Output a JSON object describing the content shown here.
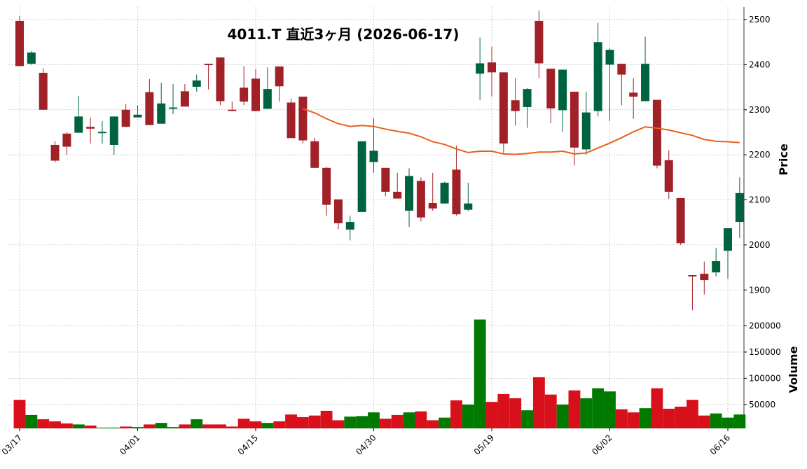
{
  "chart_data": {
    "type": "candlestick",
    "title": "4011.T  直近3ヶ月  (2026-06-17)",
    "ylabel": "Price",
    "volume_label": "Volume",
    "categories": [
      "03/17",
      null,
      null,
      null,
      null,
      null,
      null,
      null,
      null,
      null,
      "04/01",
      null,
      null,
      null,
      null,
      null,
      null,
      null,
      null,
      null,
      "04/15",
      null,
      null,
      null,
      null,
      null,
      null,
      null,
      null,
      null,
      "04/30",
      null,
      null,
      null,
      null,
      null,
      null,
      null,
      null,
      null,
      "05/19",
      null,
      null,
      null,
      null,
      null,
      null,
      null,
      null,
      null,
      "06/02",
      null,
      null,
      null,
      null,
      null,
      null,
      null,
      null,
      null,
      "06/16",
      null
    ],
    "open": [
      2497,
      2402,
      2382,
      2222,
      2247,
      2249,
      2262,
      2248,
      2222,
      2300,
      2283,
      2339,
      2269,
      2302,
      2341,
      2351,
      2402,
      2416,
      2300,
      2349,
      2369,
      2302,
      2396,
      2316,
      2329,
      2230,
      2171,
      2101,
      2034,
      2073,
      2184,
      2171,
      2118,
      2076,
      2142,
      2093,
      2092,
      2167,
      2078,
      2380,
      2405,
      2383,
      2321,
      2306,
      2497,
      2391,
      2299,
      2340,
      2212,
      2297,
      2400,
      2402,
      2338,
      2319,
      2322,
      2188,
      2104,
      1933,
      1936,
      1939,
      1987,
      2051
    ],
    "high": [
      2508,
      2430,
      2392,
      2230,
      2250,
      2331,
      2282,
      2275,
      2285,
      2313,
      2310,
      2368,
      2360,
      2357,
      2357,
      2378,
      2402,
      2416,
      2318,
      2397,
      2390,
      2394,
      2396,
      2325,
      2329,
      2238,
      2173,
      2101,
      2065,
      2230,
      2281,
      2171,
      2160,
      2170,
      2150,
      2160,
      2140,
      2220,
      2138,
      2460,
      2440,
      2383,
      2370,
      2348,
      2520,
      2391,
      2389,
      2340,
      2340,
      2493,
      2437,
      2402,
      2370,
      2462,
      2322,
      2210,
      2104,
      1933,
      1963,
      1993,
      2037,
      2150
    ],
    "low": [
      2397,
      2400,
      2300,
      2183,
      2200,
      2249,
      2225,
      2225,
      2200,
      2262,
      2283,
      2266,
      2269,
      2290,
      2307,
      2340,
      2345,
      2310,
      2297,
      2310,
      2297,
      2302,
      2318,
      2237,
      2225,
      2171,
      2065,
      2035,
      2010,
      2073,
      2160,
      2108,
      2103,
      2040,
      2052,
      2076,
      2092,
      2065,
      2075,
      2322,
      2330,
      2204,
      2265,
      2260,
      2370,
      2270,
      2250,
      2176,
      2200,
      2285,
      2275,
      2310,
      2280,
      2319,
      2170,
      2102,
      2000,
      1855,
      1890,
      1930,
      1925,
      2015
    ],
    "close": [
      2397,
      2427,
      2300,
      2187,
      2218,
      2285,
      2258,
      2251,
      2285,
      2262,
      2289,
      2266,
      2314,
      2305,
      2307,
      2365,
      2399,
      2319,
      2297,
      2318,
      2297,
      2346,
      2352,
      2237,
      2232,
      2171,
      2089,
      2048,
      2051,
      2230,
      2209,
      2118,
      2103,
      2153,
      2061,
      2081,
      2138,
      2068,
      2092,
      2403,
      2383,
      2225,
      2297,
      2346,
      2403,
      2303,
      2389,
      2216,
      2294,
      2450,
      2433,
      2378,
      2329,
      2402,
      2176,
      2118,
      2004,
      1930,
      1922,
      1964,
      2037,
      2115
    ],
    "volume": [
      59000,
      30000,
      22000,
      18000,
      14000,
      12000,
      10000,
      6000,
      6000,
      8000,
      7000,
      12000,
      15000,
      7000,
      12000,
      22000,
      12000,
      12000,
      8000,
      23000,
      18000,
      15000,
      18000,
      31000,
      26000,
      29000,
      38000,
      20000,
      27000,
      28000,
      35000,
      23000,
      30000,
      35000,
      37000,
      20000,
      25000,
      58000,
      50000,
      212000,
      55000,
      70000,
      62000,
      39000,
      102000,
      69000,
      50000,
      77000,
      62000,
      81000,
      75000,
      41000,
      35000,
      43000,
      81000,
      42000,
      46000,
      59000,
      29000,
      33000,
      25000,
      31000
    ],
    "ma_values": [
      null,
      null,
      null,
      null,
      null,
      null,
      null,
      null,
      null,
      null,
      null,
      null,
      null,
      null,
      null,
      null,
      null,
      null,
      null,
      null,
      null,
      null,
      null,
      null,
      2302,
      2293,
      2280,
      2269,
      2263,
      2265,
      2263,
      2257,
      2252,
      2248,
      2240,
      2229,
      2223,
      2213,
      2205,
      2208,
      2208,
      2202,
      2201,
      2203,
      2206,
      2206,
      2208,
      2202,
      2204,
      2215,
      2226,
      2238,
      2251,
      2262,
      2259,
      2255,
      2249,
      2243,
      2234,
      2230,
      2229,
      2227
    ],
    "ma_color": "#e8601c",
    "up_color": "#006340",
    "down_color": "#a02128",
    "volume_up_color": "#007a00",
    "volume_down_color": "#d7101b",
    "ylim": [
      1860,
      2528
    ],
    "yticks": [
      1900,
      2000,
      2100,
      2200,
      2300,
      2400,
      2500
    ],
    "volume_ylim": [
      4500,
      230000
    ],
    "volume_yticks": [
      50000,
      100000,
      150000,
      200000
    ],
    "grid": true
  }
}
